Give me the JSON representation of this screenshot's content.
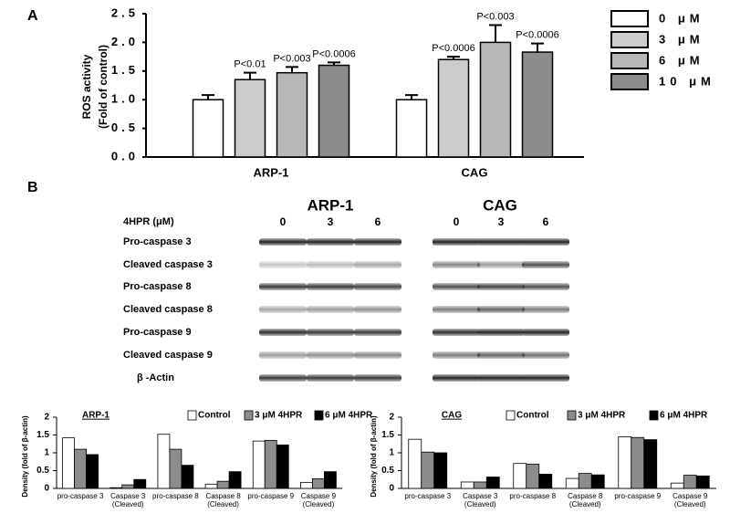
{
  "chart_data": [
    {
      "type": "bar",
      "label": "A",
      "y_label": [
        "ROS activity",
        "(Fold of control)"
      ],
      "categories": [
        "ARP-1",
        "CAG"
      ],
      "series": [
        {
          "name": "0 μM",
          "color": "#ffffff",
          "values": [
            1.0,
            1.0
          ],
          "errors": [
            0.08,
            0.08
          ]
        },
        {
          "name": "3 μM",
          "color": "#cccccc",
          "values": [
            1.35,
            1.7
          ],
          "errors": [
            0.12,
            0.05
          ],
          "annotations": [
            "P<0.01",
            "P<0.0006"
          ]
        },
        {
          "name": "6 μM",
          "color": "#b8b8b8",
          "values": [
            1.47,
            2.0
          ],
          "errors": [
            0.1,
            0.3
          ],
          "annotations": [
            "P<0.003",
            "P<0.003"
          ]
        },
        {
          "name": "10 μM",
          "color": "#8c8c8c",
          "values": [
            1.6,
            1.83
          ],
          "errors": [
            0.05,
            0.15
          ],
          "annotations": [
            "P<0.0006",
            "P<0.0006"
          ]
        }
      ],
      "ylim": [
        0,
        2.5
      ],
      "yticks": [
        {
          "value": 0,
          "label": "0.0"
        },
        {
          "value": 0.5,
          "label": "0.5"
        },
        {
          "value": 1,
          "label": "1.0"
        },
        {
          "value": 1.5,
          "label": "1.5"
        },
        {
          "value": 2,
          "label": "2.0"
        },
        {
          "value": 2.5,
          "label": "2.5"
        }
      ],
      "legend": "right"
    },
    {
      "type": "bar",
      "title": "ARP-1",
      "y_label": "Density (fold of β-actin)",
      "categories": [
        "pro-caspase 3",
        "Caspase 3 (Cleaved)",
        "pro-caspase 8",
        "Caspase 8 (Cleaved)",
        "pro-caspase 9",
        "Caspase 9 (Cleaved)"
      ],
      "series": [
        {
          "name": "Control",
          "color": "#ffffff",
          "values": [
            1.42,
            0.02,
            1.52,
            0.12,
            1.33,
            0.17
          ]
        },
        {
          "name": "3 μM 4HPR",
          "color": "#8c8c8c",
          "values": [
            1.1,
            0.1,
            1.1,
            0.2,
            1.35,
            0.27
          ]
        },
        {
          "name": "6 μM 4HPR",
          "color": "#000000",
          "values": [
            0.95,
            0.25,
            0.65,
            0.47,
            1.22,
            0.47
          ]
        }
      ],
      "ylim": [
        0,
        2
      ],
      "yticks": [
        0,
        0.5,
        1,
        1.5,
        2
      ],
      "legend": "top"
    },
    {
      "type": "bar",
      "title": "CAG",
      "y_label": "Density (fold of β-actin)",
      "categories": [
        "pro-caspase 3",
        "Caspase 3 (Cleaved)",
        "pro-caspase 8",
        "Caspase 8 (Cleaved)",
        "pro-caspase 9",
        "Caspase 9 (Cleaved)"
      ],
      "series": [
        {
          "name": "Control",
          "color": "#ffffff",
          "values": [
            1.38,
            0.18,
            0.7,
            0.28,
            1.45,
            0.15
          ]
        },
        {
          "name": "3 μM 4HPR",
          "color": "#8c8c8c",
          "values": [
            1.02,
            0.18,
            0.68,
            0.42,
            1.43,
            0.37
          ]
        },
        {
          "name": "6 μM 4HPR",
          "color": "#000000",
          "values": [
            1.0,
            0.32,
            0.4,
            0.38,
            1.37,
            0.35
          ]
        }
      ],
      "ylim": [
        0,
        2
      ],
      "yticks": [
        0,
        0.5,
        1,
        1.5,
        2
      ],
      "legend": "top"
    }
  ],
  "blot": {
    "label": "B",
    "treatment_label": "4HPR (μM)",
    "lines": [
      {
        "name": "ARP-1",
        "lanes": [
          0,
          3,
          6
        ]
      },
      {
        "name": "CAG",
        "lanes": [
          0,
          3,
          6
        ]
      }
    ],
    "rows": [
      "Pro-caspase 3",
      "Cleaved caspase 3",
      "Pro-caspase 8",
      "Cleaved caspase 8",
      "Pro-caspase 9",
      "Cleaved caspase 9",
      "β -Actin"
    ]
  }
}
